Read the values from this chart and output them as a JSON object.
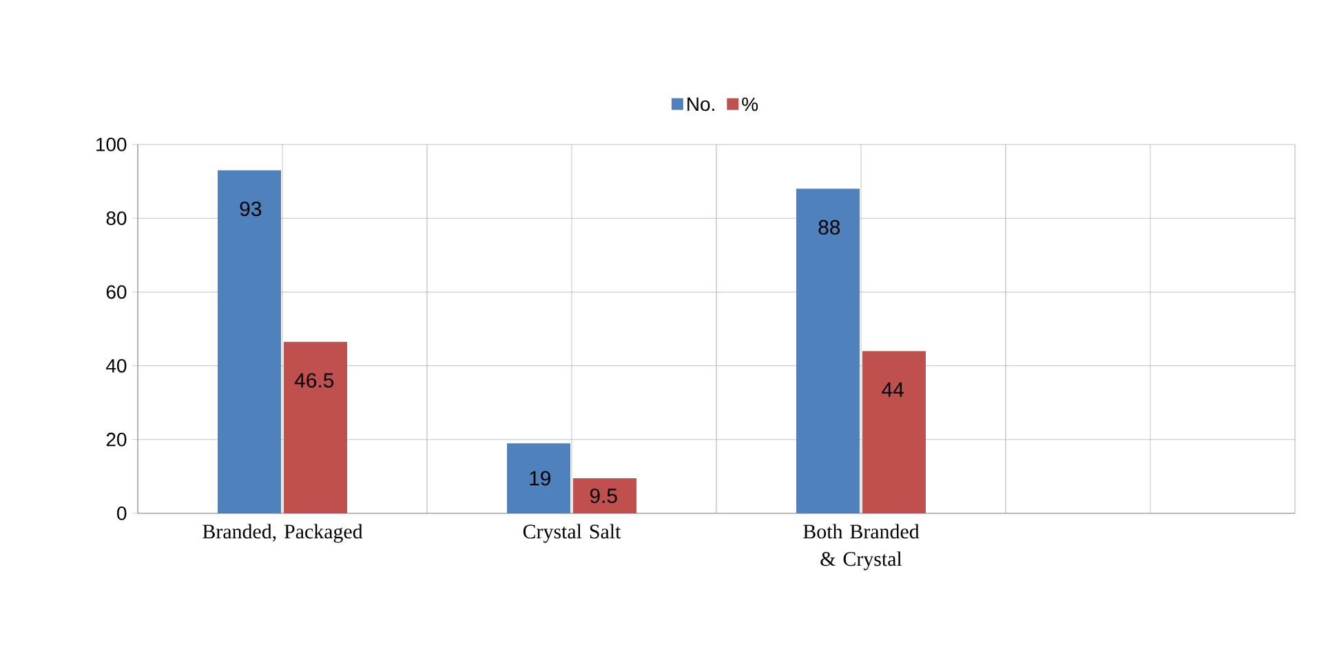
{
  "chart_data": {
    "type": "bar",
    "categories": [
      "Branded, Packaged",
      "Crystal Salt",
      "Both Branded & Crystal",
      null
    ],
    "series": [
      {
        "name": "No.",
        "color": "#4f81bd",
        "values": [
          93,
          19,
          88,
          null
        ]
      },
      {
        "name": "%",
        "color": "#c0504d",
        "values": [
          46.5,
          9.5,
          44,
          null
        ]
      }
    ],
    "ylim": [
      0,
      100
    ],
    "yticks": [
      0,
      20,
      40,
      60,
      80,
      100
    ],
    "grid": true,
    "legend": "top",
    "data_labels": true
  }
}
